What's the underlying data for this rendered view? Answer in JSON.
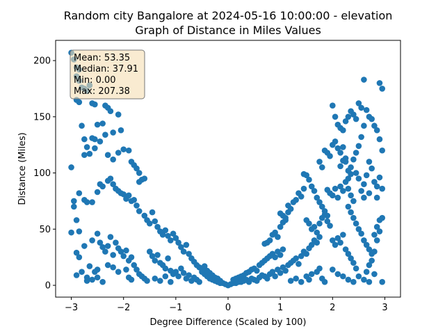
{
  "chart_data": {
    "type": "scatter",
    "title": "Random city Bangalore at 2024-05-16 10:00:00  - elevation",
    "subtitle": "Graph of Distance in Miles Values",
    "xlabel": "Degree Difference (Scaled by 100)",
    "ylabel": "Distance (Miles)",
    "xlim": [
      -3.3,
      3.3
    ],
    "ylim": [
      -10.5,
      218
    ],
    "xticks": [
      -3,
      -2,
      -1,
      0,
      1,
      2,
      3
    ],
    "yticks": [
      0,
      50,
      100,
      150,
      200
    ],
    "grid": false,
    "point_color": "#1f77b4",
    "stats_box": {
      "lines": [
        "Mean: 53.35",
        "Median: 37.91",
        "Min: 0.00",
        "Max: 207.38"
      ],
      "fill": "#f5deb3",
      "placement": "top-left"
    },
    "points": [
      [
        -3.0,
        207
      ],
      [
        -2.95,
        201
      ],
      [
        -2.9,
        194
      ],
      [
        -2.85,
        192
      ],
      [
        -2.9,
        186
      ],
      [
        -2.85,
        182
      ],
      [
        -2.8,
        176
      ],
      [
        -2.75,
        175
      ],
      [
        -2.7,
        173
      ],
      [
        -2.65,
        178
      ],
      [
        -2.6,
        162
      ],
      [
        -2.55,
        161
      ],
      [
        -2.9,
        165
      ],
      [
        -2.85,
        163
      ],
      [
        -3.0,
        105
      ],
      [
        -2.95,
        75
      ],
      [
        -2.95,
        70
      ],
      [
        -3.0,
        47
      ],
      [
        -2.9,
        58
      ],
      [
        -2.85,
        48
      ],
      [
        -2.9,
        29
      ],
      [
        -2.85,
        25
      ],
      [
        -2.9,
        9
      ],
      [
        -2.8,
        12
      ],
      [
        -2.7,
        7
      ],
      [
        -2.7,
        4
      ],
      [
        -2.6,
        5
      ],
      [
        -2.55,
        12
      ],
      [
        -2.5,
        7
      ],
      [
        -2.4,
        3
      ],
      [
        -2.8,
        142
      ],
      [
        -2.75,
        130
      ],
      [
        -2.7,
        123
      ],
      [
        -2.75,
        116
      ],
      [
        -2.65,
        117
      ],
      [
        -2.6,
        131
      ],
      [
        -2.55,
        130
      ],
      [
        -2.55,
        122
      ],
      [
        -2.45,
        128
      ],
      [
        -2.5,
        143
      ],
      [
        -2.4,
        144
      ],
      [
        -2.35,
        160
      ],
      [
        -2.3,
        158
      ],
      [
        -2.25,
        155
      ],
      [
        -2.1,
        152
      ],
      [
        -2.05,
        138
      ],
      [
        -2.2,
        136
      ],
      [
        -2.35,
        134
      ],
      [
        -2.3,
        116
      ],
      [
        -2.2,
        112
      ],
      [
        -2.1,
        118
      ],
      [
        -2.0,
        121
      ],
      [
        -1.9,
        120
      ],
      [
        -1.85,
        110
      ],
      [
        -1.8,
        107
      ],
      [
        -1.75,
        104
      ],
      [
        -1.7,
        100
      ],
      [
        -1.65,
        94
      ],
      [
        -1.6,
        95
      ],
      [
        -1.7,
        92
      ],
      [
        -2.85,
        82
      ],
      [
        -2.75,
        76
      ],
      [
        -2.7,
        74
      ],
      [
        -2.6,
        74
      ],
      [
        -2.5,
        83
      ],
      [
        -2.45,
        90
      ],
      [
        -2.4,
        88
      ],
      [
        -2.3,
        93
      ],
      [
        -2.25,
        95
      ],
      [
        -2.2,
        90
      ],
      [
        -2.15,
        86
      ],
      [
        -2.1,
        84
      ],
      [
        -2.05,
        82
      ],
      [
        -2.0,
        81
      ],
      [
        -1.95,
        77
      ],
      [
        -1.9,
        80
      ],
      [
        -1.85,
        75
      ],
      [
        -1.8,
        76
      ],
      [
        -1.75,
        71
      ],
      [
        -1.7,
        66
      ],
      [
        -2.75,
        35
      ],
      [
        -2.6,
        40
      ],
      [
        -2.5,
        46
      ],
      [
        -2.45,
        38
      ],
      [
        -2.4,
        34
      ],
      [
        -2.35,
        30
      ],
      [
        -2.3,
        35
      ],
      [
        -2.25,
        43
      ],
      [
        -2.2,
        27
      ],
      [
        -2.15,
        38
      ],
      [
        -2.1,
        33
      ],
      [
        -2.05,
        30
      ],
      [
        -2.0,
        26
      ],
      [
        -1.95,
        31
      ],
      [
        -1.9,
        22
      ],
      [
        -1.85,
        25
      ],
      [
        -1.8,
        18
      ],
      [
        -1.75,
        14
      ],
      [
        -1.7,
        10
      ],
      [
        -1.65,
        8
      ],
      [
        -2.65,
        17
      ],
      [
        -2.5,
        14
      ],
      [
        -2.3,
        18
      ],
      [
        -2.2,
        16
      ],
      [
        -2.1,
        12
      ],
      [
        -1.95,
        14
      ],
      [
        -1.9,
        7
      ],
      [
        -1.85,
        5
      ],
      [
        -1.6,
        6
      ],
      [
        -1.55,
        4
      ],
      [
        -1.6,
        62
      ],
      [
        -1.55,
        58
      ],
      [
        -1.5,
        55
      ],
      [
        -1.45,
        65
      ],
      [
        -1.4,
        57
      ],
      [
        -1.35,
        52
      ],
      [
        -1.3,
        48
      ],
      [
        -1.25,
        45
      ],
      [
        -1.2,
        49
      ],
      [
        -1.15,
        44
      ],
      [
        -1.1,
        40
      ],
      [
        -1.05,
        46
      ],
      [
        -1.0,
        42
      ],
      [
        -0.95,
        38
      ],
      [
        -0.9,
        34
      ],
      [
        -0.85,
        30
      ],
      [
        -0.8,
        36
      ],
      [
        -0.75,
        28
      ],
      [
        -0.7,
        24
      ],
      [
        -0.65,
        21
      ],
      [
        -1.5,
        30
      ],
      [
        -1.45,
        26
      ],
      [
        -1.4,
        22
      ],
      [
        -1.35,
        27
      ],
      [
        -1.3,
        20
      ],
      [
        -1.25,
        18
      ],
      [
        -1.2,
        15
      ],
      [
        -1.15,
        24
      ],
      [
        -1.1,
        13
      ],
      [
        -1.05,
        10
      ],
      [
        -1.0,
        12
      ],
      [
        -0.95,
        8
      ],
      [
        -0.9,
        15
      ],
      [
        -0.85,
        11
      ],
      [
        -0.8,
        6
      ],
      [
        -0.75,
        9
      ],
      [
        -0.7,
        4
      ],
      [
        -0.65,
        7
      ],
      [
        -0.6,
        5
      ],
      [
        -0.55,
        3
      ],
      [
        -1.4,
        6
      ],
      [
        -1.3,
        4
      ],
      [
        -1.2,
        8
      ],
      [
        -1.1,
        3
      ],
      [
        -0.5,
        12
      ],
      [
        -0.45,
        10
      ],
      [
        -0.4,
        8
      ],
      [
        -0.35,
        6
      ],
      [
        -0.3,
        5
      ],
      [
        -0.25,
        4
      ],
      [
        -0.6,
        18
      ],
      [
        -0.55,
        16
      ],
      [
        -0.5,
        14
      ],
      [
        -0.45,
        17
      ],
      [
        -0.4,
        13
      ],
      [
        -0.35,
        11
      ],
      [
        -0.3,
        9
      ],
      [
        -0.25,
        7
      ],
      [
        -0.2,
        6
      ],
      [
        -0.15,
        4
      ],
      [
        -0.2,
        3
      ],
      [
        -0.15,
        2
      ],
      [
        -0.1,
        2
      ],
      [
        -0.05,
        1
      ],
      [
        0.0,
        0
      ],
      [
        0.05,
        1
      ],
      [
        0.1,
        2
      ],
      [
        0.15,
        2
      ],
      [
        0.2,
        3
      ],
      [
        0.25,
        3
      ],
      [
        0.1,
        5
      ],
      [
        0.15,
        6
      ],
      [
        0.2,
        7
      ],
      [
        0.25,
        8
      ],
      [
        0.3,
        9
      ],
      [
        0.35,
        11
      ],
      [
        0.4,
        12
      ],
      [
        0.45,
        14
      ],
      [
        0.5,
        15
      ],
      [
        0.55,
        13
      ],
      [
        0.3,
        4
      ],
      [
        0.35,
        5
      ],
      [
        0.4,
        3
      ],
      [
        0.45,
        6
      ],
      [
        0.5,
        5
      ],
      [
        0.55,
        4
      ],
      [
        0.6,
        7
      ],
      [
        0.65,
        9
      ],
      [
        0.7,
        8
      ],
      [
        0.75,
        6
      ],
      [
        0.6,
        18
      ],
      [
        0.65,
        20
      ],
      [
        0.7,
        22
      ],
      [
        0.75,
        24
      ],
      [
        0.8,
        26
      ],
      [
        0.85,
        28
      ],
      [
        0.9,
        25
      ],
      [
        0.95,
        30
      ],
      [
        1.0,
        27
      ],
      [
        1.05,
        32
      ],
      [
        0.7,
        37
      ],
      [
        0.75,
        38
      ],
      [
        0.8,
        40
      ],
      [
        0.85,
        45
      ],
      [
        0.9,
        47
      ],
      [
        0.95,
        43
      ],
      [
        1.0,
        52
      ],
      [
        1.05,
        56
      ],
      [
        1.1,
        60
      ],
      [
        1.15,
        65
      ],
      [
        1.0,
        64
      ],
      [
        1.05,
        62
      ],
      [
        1.1,
        58
      ],
      [
        1.15,
        71
      ],
      [
        1.2,
        68
      ],
      [
        1.25,
        74
      ],
      [
        1.3,
        76
      ],
      [
        1.35,
        82
      ],
      [
        1.4,
        79
      ],
      [
        1.45,
        86
      ],
      [
        0.8,
        10
      ],
      [
        0.85,
        12
      ],
      [
        0.9,
        8
      ],
      [
        0.95,
        14
      ],
      [
        1.0,
        11
      ],
      [
        1.05,
        16
      ],
      [
        1.1,
        13
      ],
      [
        1.15,
        18
      ],
      [
        1.2,
        20
      ],
      [
        1.25,
        22
      ],
      [
        1.3,
        24
      ],
      [
        1.35,
        19
      ],
      [
        1.4,
        26
      ],
      [
        1.45,
        30
      ],
      [
        1.5,
        28
      ],
      [
        1.55,
        33
      ],
      [
        1.6,
        36
      ],
      [
        1.65,
        40
      ],
      [
        1.7,
        38
      ],
      [
        1.75,
        43
      ],
      [
        1.2,
        4
      ],
      [
        1.3,
        6
      ],
      [
        1.4,
        3
      ],
      [
        1.5,
        8
      ],
      [
        1.55,
        5
      ],
      [
        1.6,
        10
      ],
      [
        1.7,
        12
      ],
      [
        1.75,
        15
      ],
      [
        1.8,
        6
      ],
      [
        1.85,
        3
      ],
      [
        1.45,
        99
      ],
      [
        1.5,
        98
      ],
      [
        1.55,
        94
      ],
      [
        1.6,
        88
      ],
      [
        1.65,
        84
      ],
      [
        1.7,
        78
      ],
      [
        1.75,
        74
      ],
      [
        1.8,
        70
      ],
      [
        1.85,
        66
      ],
      [
        1.9,
        62
      ],
      [
        1.5,
        58
      ],
      [
        1.55,
        55
      ],
      [
        1.6,
        50
      ],
      [
        1.65,
        52
      ],
      [
        1.7,
        47
      ],
      [
        1.75,
        55
      ],
      [
        1.8,
        60
      ],
      [
        1.85,
        63
      ],
      [
        1.9,
        57
      ],
      [
        1.95,
        53
      ],
      [
        1.75,
        110
      ],
      [
        1.8,
        105
      ],
      [
        1.85,
        120
      ],
      [
        1.9,
        118
      ],
      [
        1.95,
        115
      ],
      [
        2.0,
        125
      ],
      [
        2.05,
        128
      ],
      [
        2.1,
        122
      ],
      [
        2.15,
        118
      ],
      [
        2.2,
        123
      ],
      [
        1.9,
        85
      ],
      [
        1.95,
        82
      ],
      [
        2.0,
        80
      ],
      [
        2.05,
        86
      ],
      [
        2.1,
        78
      ],
      [
        2.15,
        88
      ],
      [
        2.2,
        84
      ],
      [
        2.25,
        92
      ],
      [
        2.3,
        95
      ],
      [
        2.35,
        99
      ],
      [
        2.0,
        40
      ],
      [
        2.05,
        36
      ],
      [
        2.1,
        42
      ],
      [
        2.15,
        38
      ],
      [
        2.2,
        45
      ],
      [
        2.25,
        32
      ],
      [
        2.3,
        28
      ],
      [
        2.35,
        24
      ],
      [
        2.4,
        20
      ],
      [
        2.45,
        15
      ],
      [
        2.0,
        14
      ],
      [
        2.1,
        10
      ],
      [
        2.2,
        8
      ],
      [
        2.3,
        5
      ],
      [
        2.4,
        3
      ],
      [
        2.5,
        8
      ],
      [
        2.6,
        5
      ],
      [
        2.7,
        3
      ],
      [
        2.8,
        10
      ],
      [
        2.95,
        3
      ],
      [
        2.0,
        160
      ],
      [
        2.05,
        150
      ],
      [
        2.1,
        143
      ],
      [
        2.15,
        140
      ],
      [
        2.2,
        138
      ],
      [
        2.25,
        146
      ],
      [
        2.3,
        150
      ],
      [
        2.35,
        155
      ],
      [
        2.4,
        152
      ],
      [
        2.45,
        148
      ],
      [
        2.5,
        162
      ],
      [
        2.55,
        158
      ],
      [
        2.6,
        183
      ],
      [
        2.65,
        156
      ],
      [
        2.7,
        150
      ],
      [
        2.75,
        148
      ],
      [
        2.8,
        142
      ],
      [
        2.85,
        138
      ],
      [
        2.9,
        180
      ],
      [
        2.95,
        175
      ],
      [
        2.6,
        142
      ],
      [
        2.55,
        132
      ],
      [
        2.5,
        124
      ],
      [
        2.45,
        118
      ],
      [
        2.4,
        112
      ],
      [
        2.35,
        105
      ],
      [
        2.3,
        102
      ],
      [
        2.25,
        113
      ],
      [
        2.2,
        111
      ],
      [
        2.15,
        106
      ],
      [
        2.6,
        90
      ],
      [
        2.65,
        98
      ],
      [
        2.7,
        110
      ],
      [
        2.75,
        104
      ],
      [
        2.8,
        92
      ],
      [
        2.85,
        88
      ],
      [
        2.9,
        96
      ],
      [
        2.95,
        86
      ],
      [
        2.85,
        78
      ],
      [
        2.7,
        82
      ],
      [
        2.3,
        70
      ],
      [
        2.35,
        65
      ],
      [
        2.4,
        60
      ],
      [
        2.45,
        55
      ],
      [
        2.5,
        50
      ],
      [
        2.55,
        46
      ],
      [
        2.6,
        40
      ],
      [
        2.65,
        36
      ],
      [
        2.7,
        32
      ],
      [
        2.75,
        28
      ],
      [
        2.8,
        45
      ],
      [
        2.85,
        52
      ],
      [
        2.9,
        58
      ],
      [
        2.95,
        60
      ],
      [
        2.9,
        48
      ],
      [
        2.85,
        40
      ],
      [
        2.8,
        30
      ],
      [
        2.75,
        22
      ],
      [
        2.7,
        18
      ],
      [
        2.65,
        12
      ],
      [
        2.45,
        100
      ],
      [
        2.5,
        95
      ],
      [
        2.55,
        84
      ],
      [
        2.6,
        78
      ],
      [
        2.4,
        75
      ],
      [
        2.35,
        80
      ],
      [
        2.3,
        86
      ],
      [
        2.25,
        110
      ],
      [
        2.9,
        130
      ],
      [
        2.95,
        120
      ]
    ]
  }
}
